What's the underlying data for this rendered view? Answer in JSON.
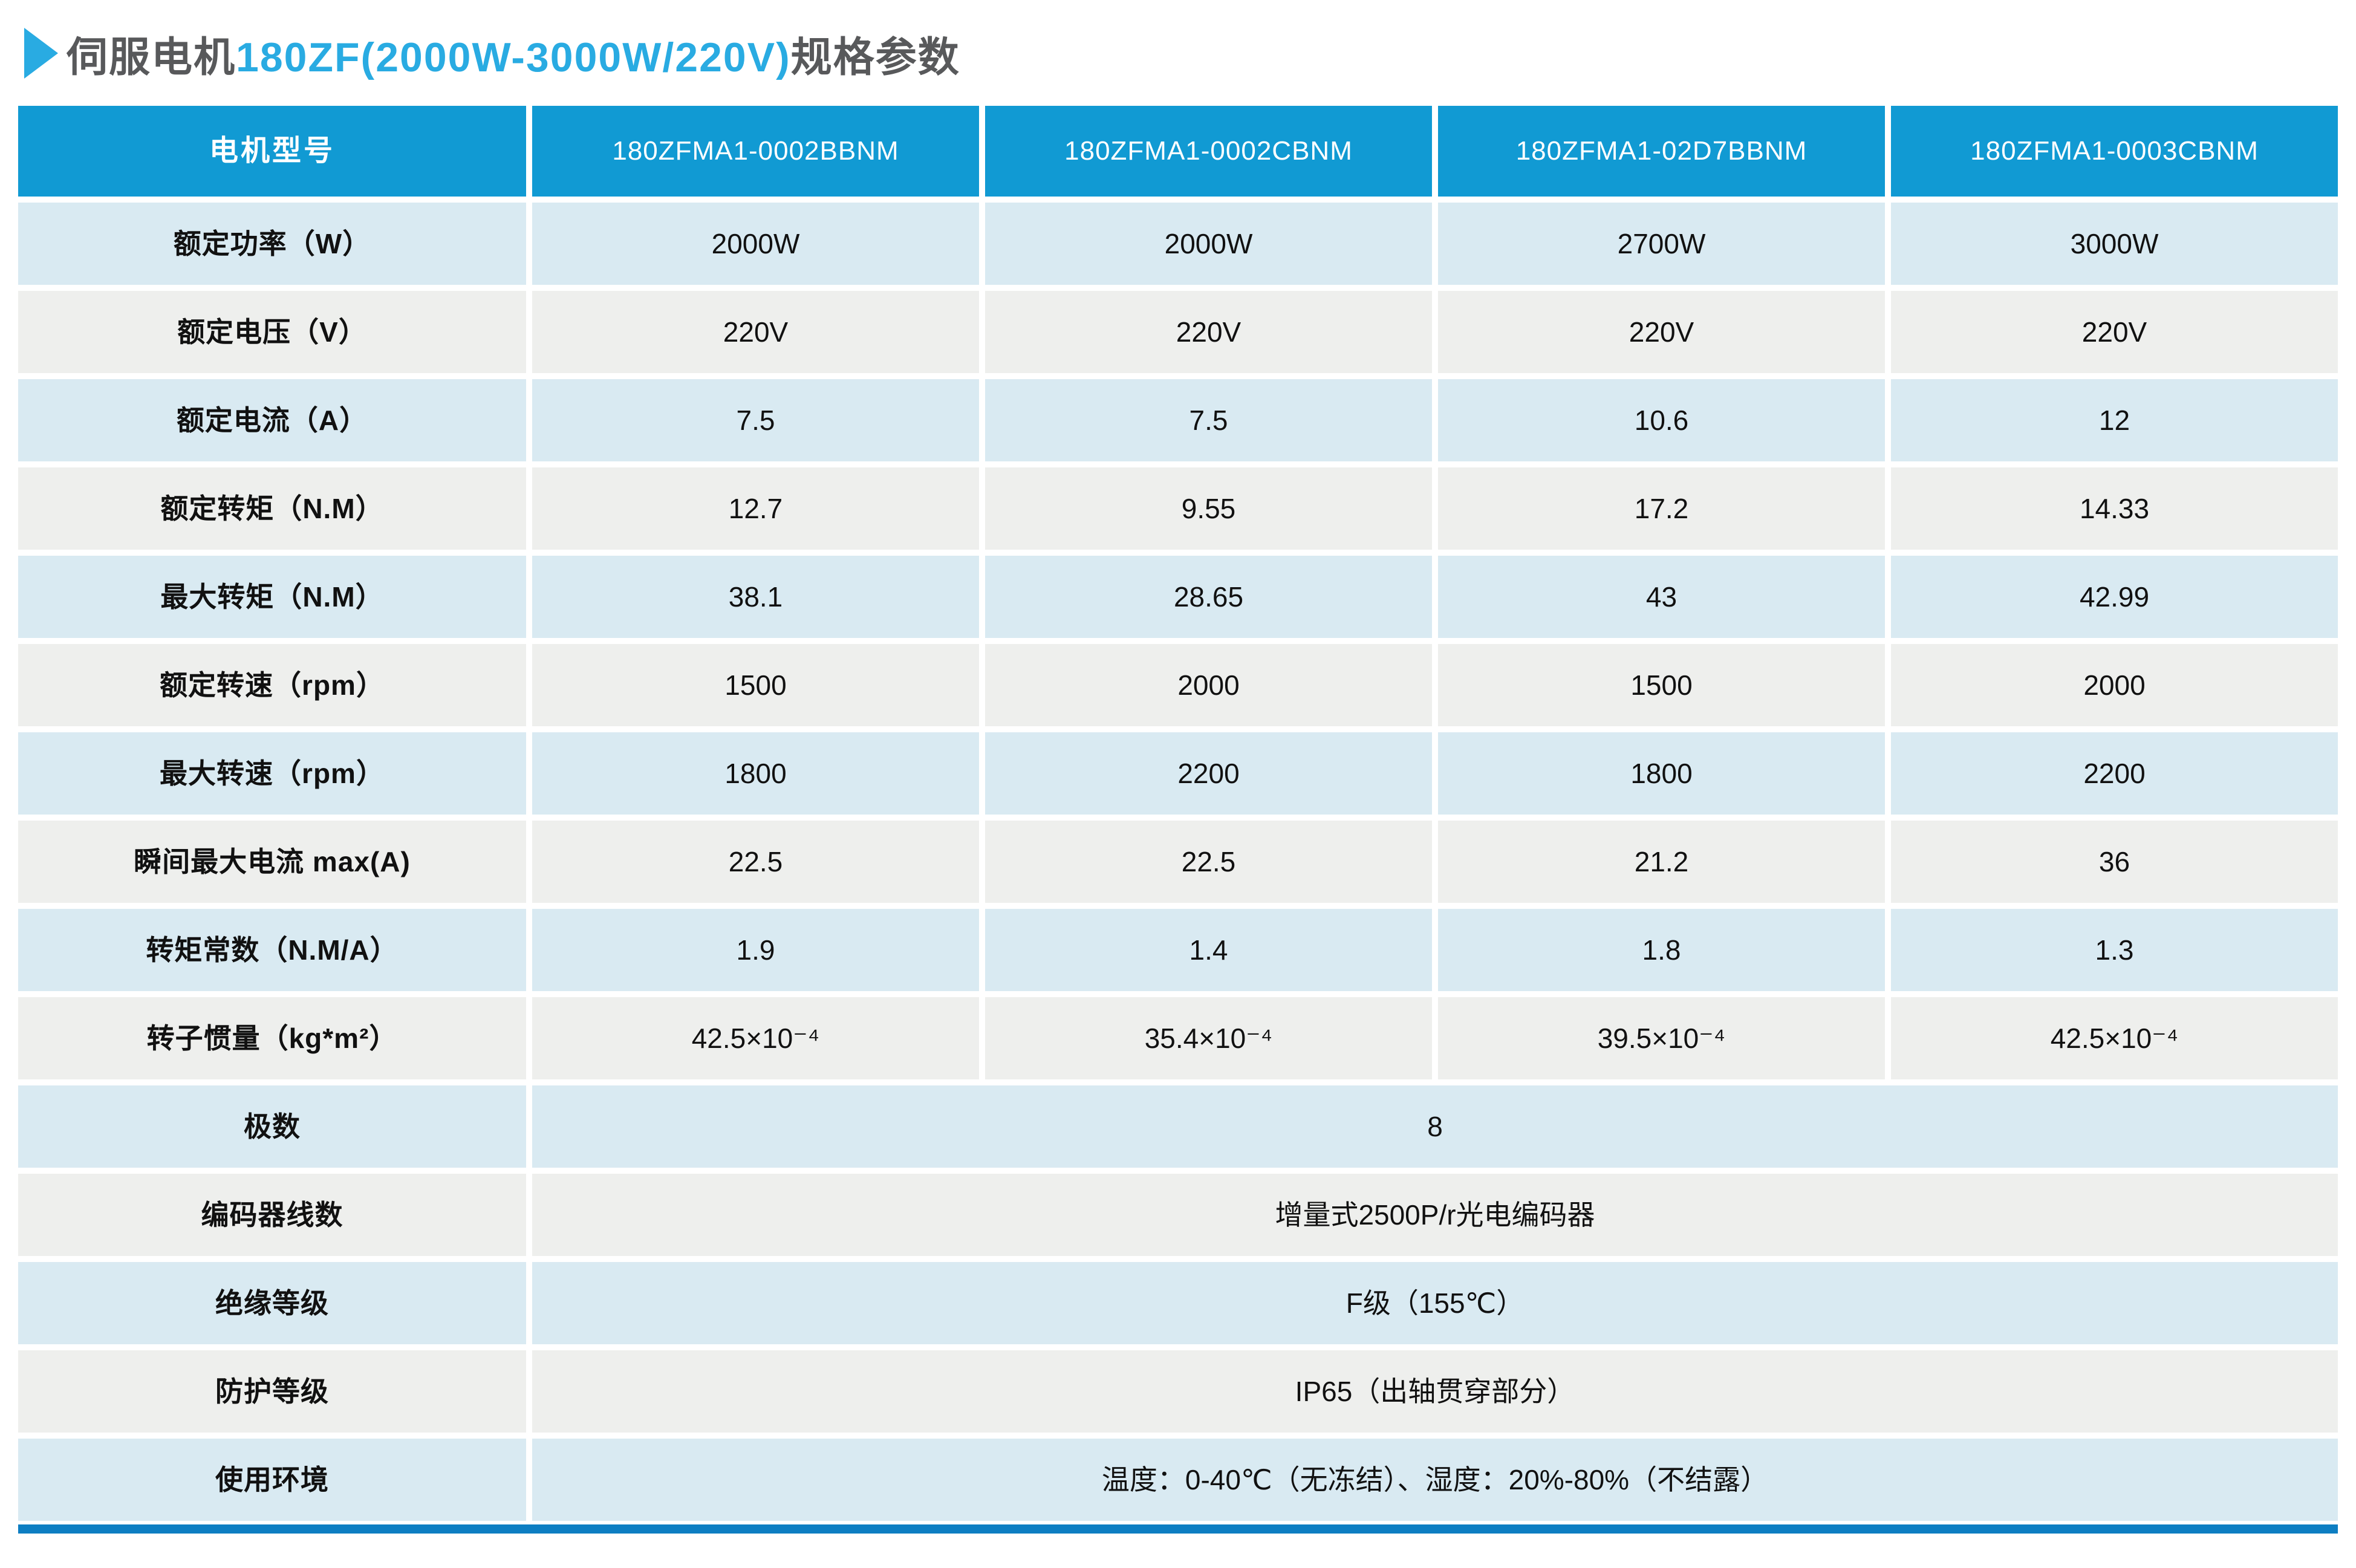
{
  "title": {
    "prefix": "伺服电机",
    "highlight": "180ZF(2000W-3000W/220V)",
    "suffix": "规格参数"
  },
  "colors": {
    "header_bg": "#119ad3",
    "row_blue": "#d9eaf2",
    "row_gray": "#eeefed",
    "accent_bar": "#0d7ec2",
    "title_text": "#58595b",
    "title_highlight": "#29abe2"
  },
  "table": {
    "header": {
      "label": "电机型号",
      "models": [
        "180ZFMA1-0002BBNM",
        "180ZFMA1-0002CBNM",
        "180ZFMA1-02D7BBNM",
        "180ZFMA1-0003CBNM"
      ]
    },
    "rows": [
      {
        "label": "额定功率（W）",
        "values": [
          "2000W",
          "2000W",
          "2700W",
          "3000W"
        ]
      },
      {
        "label": "额定电压（V）",
        "values": [
          "220V",
          "220V",
          "220V",
          "220V"
        ]
      },
      {
        "label": "额定电流（A）",
        "values": [
          "7.5",
          "7.5",
          "10.6",
          "12"
        ]
      },
      {
        "label": "额定转矩（N.M）",
        "values": [
          "12.7",
          "9.55",
          "17.2",
          "14.33"
        ]
      },
      {
        "label": "最大转矩（N.M）",
        "values": [
          "38.1",
          "28.65",
          "43",
          "42.99"
        ]
      },
      {
        "label": "额定转速（rpm）",
        "values": [
          "1500",
          "2000",
          "1500",
          "2000"
        ]
      },
      {
        "label": "最大转速（rpm）",
        "values": [
          "1800",
          "2200",
          "1800",
          "2200"
        ]
      },
      {
        "label": "瞬间最大电流 max(A)",
        "values": [
          "22.5",
          "22.5",
          "21.2",
          "36"
        ]
      },
      {
        "label": "转矩常数（N.M/A）",
        "values": [
          "1.9",
          "1.4",
          "1.8",
          "1.3"
        ]
      },
      {
        "label": "转子惯量（kg*m²）",
        "values": [
          "42.5×10⁻⁴",
          "35.4×10⁻⁴",
          "39.5×10⁻⁴",
          "42.5×10⁻⁴"
        ]
      }
    ],
    "merged_rows": [
      {
        "label": "极数",
        "value": "8"
      },
      {
        "label": "编码器线数",
        "value": "增量式2500P/r光电编码器"
      },
      {
        "label": "绝缘等级",
        "value": "F级（155℃）"
      },
      {
        "label": "防护等级",
        "value": "IP65（出轴贯穿部分）"
      },
      {
        "label": "使用环境",
        "value": "温度：0-40℃（无冻结）、湿度：20%-80%（不结露）"
      }
    ]
  }
}
